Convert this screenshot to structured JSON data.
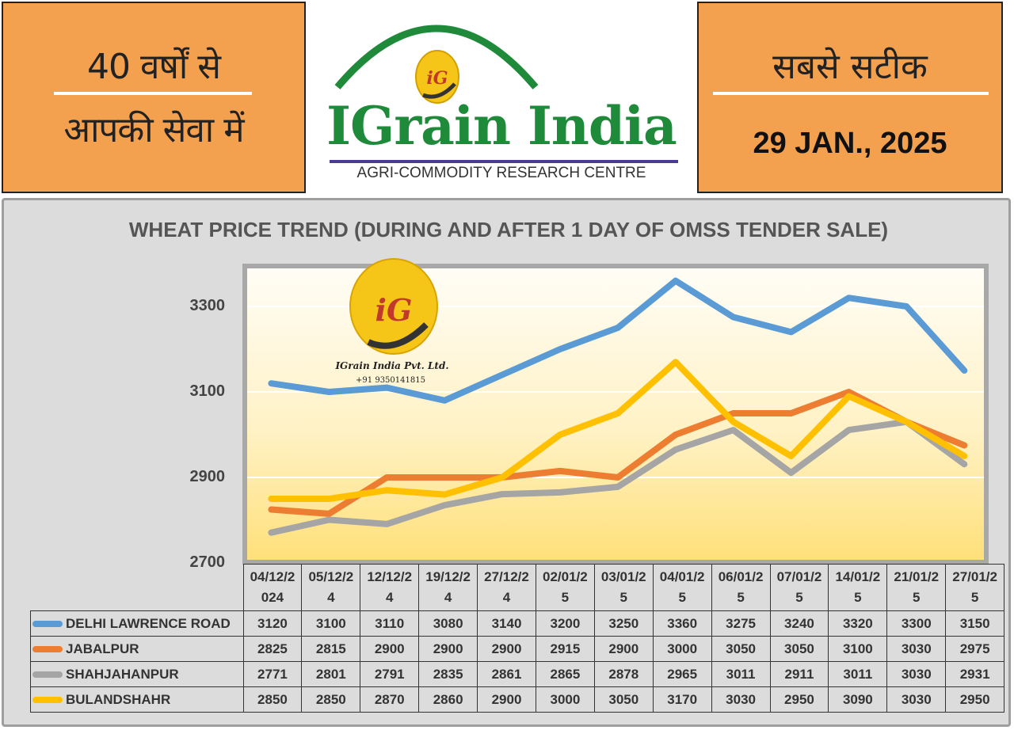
{
  "header": {
    "tagline_line1": "40 वर्षों से",
    "tagline_line2": "आपकी सेवा में",
    "brand_name": "IGrain India",
    "brand_subtitle": "AGRI-COMMODITY RESEARCH CENTRE",
    "logo_text": "iG",
    "slogan": "सबसे सटीक",
    "date": "29 JAN., 2025"
  },
  "watermark": {
    "logo_text": "iG",
    "company": "IGrain India Pvt. Ltd.",
    "phone": "+91 9350141815"
  },
  "colors": {
    "header_orange": "#f4a14f",
    "brand_green": "#1e8a3a",
    "delhi": "#5b9bd5",
    "jabalpur": "#ed7d31",
    "shahjahanpur": "#a5a5a5",
    "bulandshahr": "#ffc000"
  },
  "chart_data": {
    "type": "line",
    "title": "WHEAT PRICE TREND (DURING AND AFTER 1 DAY OF OMSS TENDER SALE)",
    "xlabel": "",
    "ylabel": "",
    "ylim": [
      2700,
      3400
    ],
    "y_ticks": [
      2700,
      2900,
      3100,
      3300
    ],
    "grid": true,
    "legend_placement": "table-left",
    "categories": [
      "04/12/2024",
      "05/12/24",
      "12/12/24",
      "19/12/24",
      "27/12/24",
      "02/01/25",
      "03/01/25",
      "04/01/25",
      "06/01/25",
      "07/01/25",
      "14/01/25",
      "21/01/25",
      "27/01/25"
    ],
    "series": [
      {
        "name": "DELHI LAWRENCE ROAD",
        "color": "#5b9bd5",
        "values": [
          3120,
          3100,
          3110,
          3080,
          3140,
          3200,
          3250,
          3360,
          3275,
          3240,
          3320,
          3300,
          3150
        ]
      },
      {
        "name": "JABALPUR",
        "color": "#ed7d31",
        "values": [
          2825,
          2815,
          2900,
          2900,
          2900,
          2915,
          2900,
          3000,
          3050,
          3050,
          3100,
          3030,
          2975
        ]
      },
      {
        "name": "SHAHJAHANPUR",
        "color": "#a5a5a5",
        "values": [
          2771,
          2801,
          2791,
          2835,
          2861,
          2865,
          2878,
          2965,
          3011,
          2911,
          3011,
          3030,
          2931
        ]
      },
      {
        "name": "BULANDSHAHR",
        "color": "#ffc000",
        "values": [
          2850,
          2850,
          2870,
          2860,
          2900,
          3000,
          3050,
          3170,
          3030,
          2950,
          3090,
          3030,
          2950
        ]
      }
    ]
  }
}
